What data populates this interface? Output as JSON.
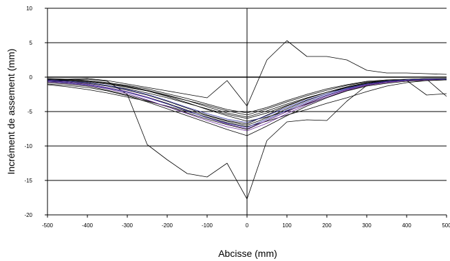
{
  "chart_data": {
    "type": "line",
    "title": "",
    "xlabel": "Abcisse (mm)",
    "ylabel": "Incrément de assement (mm)",
    "xlim": [
      -500,
      500
    ],
    "ylim": [
      -20,
      10
    ],
    "x_ticks": [
      -500,
      -400,
      -300,
      -200,
      -100,
      0,
      100,
      200,
      300,
      400,
      500
    ],
    "y_ticks": [
      -20,
      -15,
      -10,
      -5,
      0,
      5,
      10
    ],
    "x_tick_labels": [
      "-500",
      "-400",
      "-300",
      "-200",
      "-100",
      "0",
      "100",
      "200",
      "300",
      "400",
      "500"
    ],
    "y_tick_labels": [
      "-20",
      "-15",
      "-10",
      "-5",
      "0",
      "5",
      "10"
    ],
    "grid": "horizontal",
    "legend": "none",
    "x": [
      -500,
      -450,
      -400,
      -350,
      -300,
      -250,
      -200,
      -150,
      -100,
      -50,
      0,
      50,
      100,
      150,
      200,
      250,
      300,
      350,
      400,
      450,
      500
    ],
    "series": [
      {
        "color": "#000000",
        "values": [
          -0.5,
          -0.4,
          -0.3,
          -0.6,
          -2.5,
          -9.8,
          -12,
          -14,
          -14.5,
          -12.5,
          -17.7,
          -9.2,
          -6.5,
          -6.2,
          -6.3,
          -3.5,
          -1.2,
          -0.6,
          -0.4,
          -0.3,
          -0.2
        ]
      },
      {
        "color": "#000000",
        "values": [
          -0.3,
          -0.3,
          -0.2,
          -0.5,
          -1,
          -1.5,
          -2,
          -2.5,
          -3,
          -0.5,
          -4.2,
          2.5,
          5.3,
          3,
          3,
          2.5,
          1,
          0.6,
          0.6,
          0.5,
          0.4
        ]
      },
      {
        "color": "#000000",
        "values": [
          -0.6,
          -0.8,
          -1.1,
          -1.6,
          -2.2,
          -2.9,
          -3.8,
          -4.8,
          -5.6,
          -6.4,
          -7,
          -5.9,
          -4.6,
          -3.4,
          -2.4,
          -1.5,
          -0.9,
          -0.6,
          -0.4,
          -0.3,
          -0.3
        ]
      },
      {
        "color": "#000000",
        "values": [
          -0.4,
          -0.5,
          -0.7,
          -1,
          -1.5,
          -2,
          -2.7,
          -3.4,
          -4.1,
          -4.9,
          -5.5,
          -4.6,
          -3.6,
          -2.7,
          -1.9,
          -1.2,
          -0.7,
          -0.5,
          -0.4,
          -0.3,
          -0.3
        ]
      },
      {
        "color": "#000000",
        "values": [
          -0.8,
          -1,
          -1.3,
          -1.9,
          -2.6,
          -3.4,
          -4.3,
          -5.2,
          -6.1,
          -6.9,
          -7.6,
          -6.3,
          -5,
          -3.8,
          -2.7,
          -1.8,
          -1.1,
          -0.7,
          -0.5,
          -0.4,
          -0.3
        ]
      },
      {
        "color": "#000000",
        "values": [
          -0.2,
          -0.3,
          -0.5,
          -0.8,
          -1.2,
          -1.7,
          -2.4,
          -3.1,
          -3.9,
          -4.7,
          -5.2,
          -4.4,
          -3.4,
          -2.5,
          -1.7,
          -1.1,
          -0.6,
          -0.4,
          -0.3,
          -0.2,
          -0.2
        ]
      },
      {
        "color": "#000000",
        "values": [
          -1,
          -1.2,
          -1.5,
          -2,
          -2.7,
          -3.6,
          -4.6,
          -5.6,
          -6.6,
          -7.6,
          -8.5,
          -7.1,
          -5.6,
          -4.2,
          -3,
          -2,
          -1.3,
          -0.9,
          -0.6,
          -0.5,
          -0.4
        ]
      },
      {
        "color": "#000000",
        "values": [
          -0.5,
          -0.6,
          -0.8,
          -1.2,
          -1.7,
          -2.3,
          -3,
          -3.8,
          -4.6,
          -5.4,
          -6,
          -5.2,
          -4.1,
          -3.1,
          -2.2,
          -1.4,
          -0.8,
          -0.5,
          -0.4,
          -0.3,
          -0.3
        ]
      },
      {
        "color": "#000000",
        "values": [
          -1.1,
          -1.4,
          -1.8,
          -2.3,
          -2.9,
          -3.5,
          -4.2,
          -5,
          -5.8,
          -6.6,
          -7.2,
          -6.4,
          -5.5,
          -4.7,
          -3.8,
          -3,
          -2.1,
          -1.3,
          -0.8,
          -0.5,
          -0.4
        ]
      },
      {
        "color": "#000000",
        "values": [
          -0.3,
          -0.4,
          -0.6,
          -0.9,
          -1.3,
          -1.9,
          -2.6,
          -3.4,
          -4.3,
          -5.2,
          -5.8,
          -4.9,
          -3.9,
          -3,
          -2.2,
          -1.5,
          -0.9,
          -0.6,
          -0.4,
          -0.3,
          -0.3
        ]
      },
      {
        "color": "#000000",
        "values": [
          -0.6,
          -0.7,
          -0.9,
          -1.3,
          -1.9,
          -2.6,
          -3.5,
          -4.5,
          -5.5,
          -6.3,
          -6.8,
          -5.5,
          -4.2,
          -3.1,
          -2.2,
          -1.5,
          -0.9,
          -0.5,
          -0.4,
          -0.3,
          -2.8
        ]
      },
      {
        "color": "#000000",
        "values": [
          -0.4,
          -0.5,
          -0.6,
          -0.9,
          -1.4,
          -2,
          -2.8,
          -3.7,
          -4.7,
          -5.6,
          -6.4,
          -5.8,
          -4.9,
          -3.9,
          -2.9,
          -2,
          -1.2,
          -0.7,
          -0.5,
          -2.6,
          -2.4
        ]
      },
      {
        "color": "#7030a0",
        "values": [
          -0.7,
          -0.9,
          -1.2,
          -1.7,
          -2.4,
          -3.3,
          -4.3,
          -5.3,
          -6.3,
          -7.2,
          -7.8,
          -6.7,
          -5.3,
          -4,
          -2.9,
          -1.9,
          -1.2,
          -0.8,
          -0.5,
          -0.4,
          -0.3
        ]
      },
      {
        "color": "#7030a0",
        "values": [
          -0.5,
          -0.7,
          -1,
          -1.5,
          -2.1,
          -2.9,
          -3.9,
          -4.9,
          -5.9,
          -6.8,
          -7.5,
          -6.3,
          -5,
          -3.8,
          -2.7,
          -1.8,
          -1.1,
          -0.7,
          -0.5,
          -0.4,
          -0.3
        ]
      },
      {
        "color": "#3030a0",
        "values": [
          -0.6,
          -0.8,
          -1.1,
          -1.6,
          -2.2,
          -3,
          -3.9,
          -4.9,
          -5.9,
          -6.7,
          -7.3,
          -6.1,
          -4.8,
          -3.6,
          -2.6,
          -1.7,
          -1,
          -0.6,
          -0.4,
          -0.3,
          -0.3
        ]
      },
      {
        "color": "#3030a0",
        "values": [
          -0.4,
          -0.6,
          -0.8,
          -1.2,
          -1.8,
          -2.5,
          -3.4,
          -4.4,
          -5.3,
          -6.1,
          -6.6,
          -5.6,
          -4.4,
          -3.3,
          -2.4,
          -1.6,
          -1,
          -0.6,
          -0.4,
          -0.3,
          -0.3
        ]
      }
    ]
  }
}
